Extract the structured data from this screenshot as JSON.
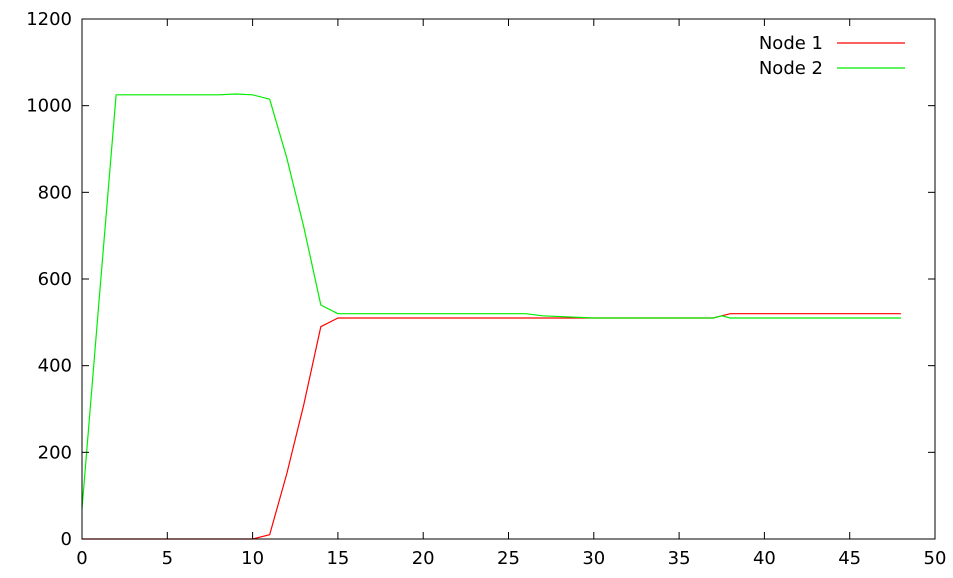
{
  "chart_data": {
    "type": "line",
    "title": "",
    "xlabel": "",
    "ylabel": "",
    "xlim": [
      0,
      50
    ],
    "ylim": [
      0,
      1200
    ],
    "xticks": [
      0,
      5,
      10,
      15,
      20,
      25,
      30,
      35,
      40,
      45,
      50
    ],
    "yticks": [
      0,
      200,
      400,
      600,
      800,
      1000,
      1200
    ],
    "grid": false,
    "legend_position": "top-right",
    "series": [
      {
        "name": "Node 1",
        "color": "#ff0000",
        "x": [
          0,
          1,
          2,
          3,
          4,
          5,
          6,
          7,
          8,
          9,
          10,
          11,
          12,
          13,
          14,
          15,
          20,
          26,
          27,
          30,
          35,
          37,
          37.5,
          38,
          40,
          45,
          48
        ],
        "y": [
          0,
          0,
          0,
          0,
          0,
          0,
          0,
          0,
          0,
          0,
          0,
          10,
          150,
          310,
          490,
          510,
          510,
          510,
          510,
          510,
          510,
          510,
          515,
          520,
          520,
          520,
          520
        ]
      },
      {
        "name": "Node 2",
        "color": "#00ee00",
        "x": [
          0,
          1,
          2,
          3,
          4,
          5,
          6,
          7,
          8,
          9,
          10,
          11,
          12,
          13,
          14,
          15,
          20,
          26,
          27,
          30,
          35,
          37,
          37.5,
          38,
          40,
          45,
          48
        ],
        "y": [
          70,
          550,
          1025,
          1025,
          1025,
          1025,
          1025,
          1025,
          1025,
          1027,
          1025,
          1015,
          880,
          720,
          540,
          520,
          520,
          520,
          515,
          510,
          510,
          510,
          515,
          510,
          510,
          510,
          510
        ]
      }
    ]
  }
}
